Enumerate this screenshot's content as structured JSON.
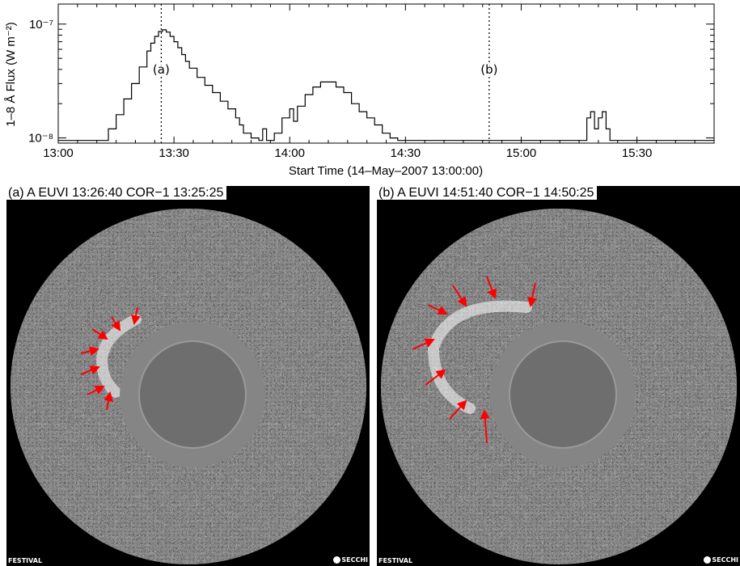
{
  "chart_data": {
    "type": "line",
    "ylabel": "1–8 Å Flux (W m⁻²)",
    "xlabel": "Start Time (14–May–2007 13:00:00)",
    "ytick_labels": [
      "10⁻⁸",
      "10⁻⁷"
    ],
    "ylim": [
      "9e-9",
      "1.5e-7"
    ],
    "y_scale": "log",
    "xlim_minutes": [
      0,
      170
    ],
    "xtick_labels": [
      "13:00",
      "13:30",
      "14:00",
      "14:30",
      "15:00",
      "15:30"
    ],
    "xtick_minutes": [
      0,
      30,
      60,
      90,
      120,
      150
    ],
    "markers": [
      {
        "label": "(a)",
        "minute": 26.7
      },
      {
        "label": "(b)",
        "minute": 111.7
      }
    ],
    "series": [
      {
        "x": [
          0,
          12,
          13,
          15,
          17,
          19,
          21,
          23,
          24,
          25,
          26,
          27,
          28,
          29,
          30,
          31,
          32,
          33,
          34,
          36,
          38,
          40,
          42,
          44,
          46,
          47,
          48,
          50,
          52,
          53,
          54,
          56,
          58,
          60,
          61,
          62,
          64,
          66,
          68,
          70,
          72,
          74,
          76,
          78,
          80,
          82,
          84,
          86,
          88,
          135,
          137,
          138,
          139,
          140,
          141,
          142,
          143,
          145,
          170
        ],
        "y": [
          "9.5e-9",
          "9.5e-9",
          "1.2e-8",
          "1.6e-8",
          "2.2e-8",
          "3.0e-8",
          "4.2e-8",
          "5.8e-8",
          "6.8e-8",
          "7.8e-8",
          "8.6e-8",
          "8.9e-8",
          "8.5e-8",
          "7.8e-8",
          "7.0e-8",
          "6.2e-8",
          "5.4e-8",
          "4.7e-8",
          "4.1e-8",
          "3.4e-8",
          "2.9e-8",
          "2.5e-8",
          "2.1e-8",
          "1.8e-8",
          "1.5e-8",
          "1.3e-8",
          "1.1e-8",
          "1.0e-8",
          "9.5e-9",
          "1.2e-8",
          "9.5e-9",
          "1.1e-8",
          "1.5e-8",
          "1.8e-8",
          "1.4e-8",
          "1.9e-8",
          "2.4e-8",
          "2.8e-8",
          "3.1e-8",
          "3.1e-8",
          "2.8e-8",
          "2.5e-8",
          "2.0e-8",
          "1.7e-8",
          "1.5e-8",
          "1.3e-8",
          "1.1e-8",
          "1.0e-8",
          "9.5e-9",
          "9.5e-9",
          "1.5e-8",
          "1.7e-8",
          "1.2e-8",
          "1.5e-8",
          "1.7e-8",
          "1.2e-8",
          "9.5e-9",
          "9.5e-9",
          "9.5e-9"
        ]
      }
    ]
  },
  "panels": [
    {
      "label": "(a) A  EUVI 13:26:40  COR−1 13:25:25",
      "left_tag": "FESTIVAL",
      "right_tag": "SECCHI"
    },
    {
      "label": "(b) A  EUVI 14:51:40  COR−1 14:50:25",
      "left_tag": "FESTIVAL",
      "right_tag": "SECCHI"
    }
  ],
  "colors": {
    "arrow": "#ff0000",
    "background": "#000000",
    "noise": "#888888"
  }
}
